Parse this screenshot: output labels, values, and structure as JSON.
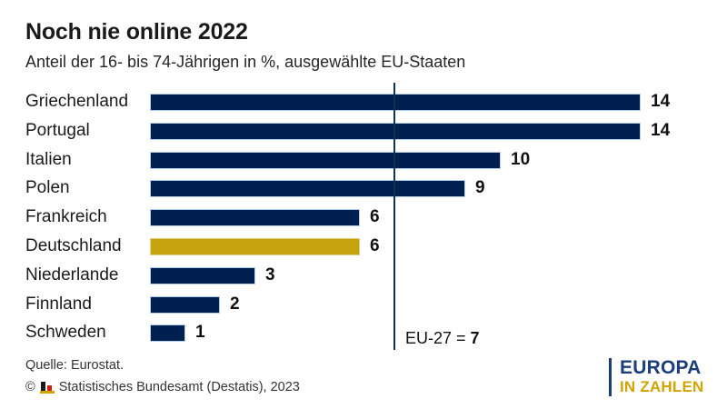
{
  "title": "Noch nie online 2022",
  "subtitle": "Anteil der 16- bis 74-Jährigen in %, ausgewählte EU-Staaten",
  "chart_data": {
    "type": "bar",
    "orientation": "horizontal",
    "categories": [
      "Griechenland",
      "Portugal",
      "Italien",
      "Polen",
      "Frankreich",
      "Deutschland",
      "Niederlande",
      "Finnland",
      "Schweden"
    ],
    "values": [
      14,
      14,
      10,
      9,
      6,
      6,
      3,
      2,
      1
    ],
    "unit": "%",
    "xlim": [
      0,
      14
    ],
    "grid": false,
    "highlight_category": "Deutschland",
    "reference_line": {
      "label_prefix": "EU-27 = ",
      "value_label": "7",
      "value": 7
    },
    "colors": {
      "bar": "#00214f",
      "highlight_bar": "#c5a40e",
      "reference_line": "#123252"
    }
  },
  "footer": {
    "source": "Quelle: Eurostat.",
    "copyright_symbol": "©",
    "copyright": "Statistisches Bundesamt (Destatis), 2023"
  },
  "logo": {
    "line1": "EUROPA",
    "line2": "IN ZAHLEN",
    "color_line1": "#1c3e7b",
    "color_line2": "#d2a400"
  }
}
